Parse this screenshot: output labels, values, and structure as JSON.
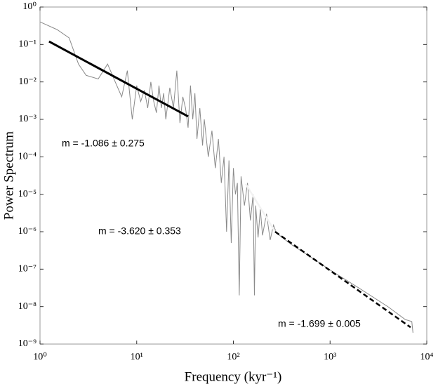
{
  "chart_data": {
    "type": "line",
    "xlabel": "Frequency (kyr⁻¹)",
    "ylabel": "Power Spectrum",
    "xscale": "log",
    "yscale": "log",
    "xlim": [
      1,
      10000
    ],
    "ylim": [
      1e-09,
      1
    ],
    "xticks": [
      {
        "value": 1,
        "label": "10⁰"
      },
      {
        "value": 10,
        "label": "10¹"
      },
      {
        "value": 100,
        "label": "10²"
      },
      {
        "value": 1000,
        "label": "10³"
      },
      {
        "value": 10000,
        "label": "10⁴"
      }
    ],
    "yticks": [
      {
        "value": 1e-09,
        "label": "10⁻⁹"
      },
      {
        "value": 1e-08,
        "label": "10⁻⁸"
      },
      {
        "value": 1e-07,
        "label": "10⁻⁷"
      },
      {
        "value": 1e-06,
        "label": "10⁻⁶"
      },
      {
        "value": 1e-05,
        "label": "10⁻⁵"
      },
      {
        "value": 0.0001,
        "label": "10⁻⁴"
      },
      {
        "value": 0.001,
        "label": "10⁻³"
      },
      {
        "value": 0.01,
        "label": "10⁻²"
      },
      {
        "value": 0.1,
        "label": "10⁻¹"
      },
      {
        "value": 1,
        "label": "10⁰"
      }
    ],
    "series": [
      {
        "color": "#8a8a8a",
        "width": 1,
        "dashed": false,
        "x": [
          1,
          1.5,
          2,
          2.5,
          3,
          4,
          5,
          6,
          7,
          8,
          9,
          10,
          11,
          12,
          13,
          14,
          15,
          16,
          17,
          18,
          19,
          20,
          22,
          24,
          26,
          28,
          30,
          32,
          34,
          36,
          38,
          40,
          42,
          45,
          48,
          50,
          55,
          60,
          65,
          70,
          75,
          80,
          85,
          90,
          95,
          100,
          105,
          110,
          115,
          120,
          130,
          140,
          150,
          160,
          165,
          170,
          180,
          190,
          200,
          220,
          240,
          260,
          280,
          300,
          400,
          600,
          1000,
          2000,
          4000,
          6000,
          7000,
          7200
        ],
        "values": [
          0.4,
          0.25,
          0.15,
          0.03,
          0.015,
          0.012,
          0.03,
          0.01,
          0.004,
          0.02,
          0.001,
          0.008,
          0.003,
          0.006,
          0.002,
          0.01,
          0.003,
          0.0015,
          0.008,
          0.002,
          0.005,
          0.001,
          0.007,
          0.002,
          0.02,
          0.0008,
          0.004,
          0.002,
          0.0006,
          0.008,
          0.001,
          0.005,
          0.0003,
          0.002,
          0.0002,
          0.001,
          0.0001,
          0.0005,
          5e-05,
          0.0003,
          2e-05,
          0.0001,
          1e-06,
          8e-05,
          5e-07,
          5e-05,
          1e-05,
          2e-05,
          2e-08,
          3e-05,
          5e-06,
          2e-05,
          2e-06,
          1e-05,
          2e-08,
          5e-06,
          7e-07,
          4e-06,
          8e-07,
          3e-06,
          6e-07,
          1.5e-06,
          9e-07,
          8e-07,
          4.5e-07,
          2.3e-07,
          9.5e-08,
          3.1e-08,
          9.8e-09,
          4.5e-09,
          4e-09,
          2e-09
        ]
      },
      {
        "color": "#000000",
        "width": 3,
        "dashed": false,
        "x": [
          1.24,
          34
        ],
        "values": [
          0.12,
          0.0012
        ]
      },
      {
        "color": "#f2f2f2",
        "width": 2.5,
        "dashed": false,
        "x": [
          134,
          270
        ],
        "values": [
          1.9e-05,
          1e-06
        ]
      },
      {
        "color": "#000000",
        "width": 2.5,
        "dashed": true,
        "x": [
          270,
          6800
        ],
        "values": [
          1e-06,
          2.8e-09
        ]
      }
    ],
    "annotations": [
      "m = -1.086 ± 0.275",
      "m = -3.620 ± 0.353",
      "m = -1.699 ± 0.005"
    ]
  }
}
